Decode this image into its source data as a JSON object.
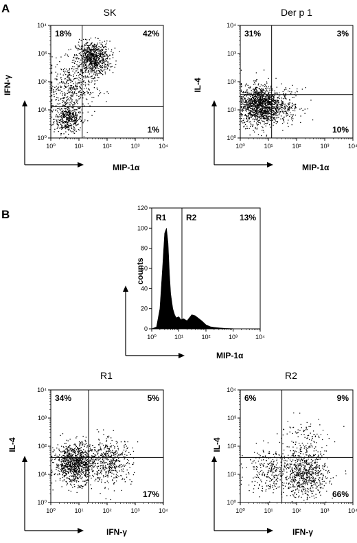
{
  "panel_labels": {
    "a": "A",
    "b": "B"
  },
  "colors": {
    "ink": "#000000",
    "background": "#ffffff"
  },
  "chart_data": [
    {
      "id": "sk",
      "type": "scatter",
      "title": "SK",
      "xlabel": "MIP-1α",
      "ylabel": "IFN-γ",
      "scale": "log",
      "xlim": [
        1,
        10000
      ],
      "ylim": [
        1,
        10000
      ],
      "xticks": [
        "10⁰",
        "10¹",
        "10²",
        "10³",
        "10⁴"
      ],
      "yticks": [
        "10⁰",
        "10¹",
        "10²",
        "10³",
        "10⁴"
      ],
      "gate": {
        "x": 13,
        "y": 13
      },
      "quadrants": {
        "ul": "18%",
        "ur": "42%",
        "lr": "1%"
      },
      "clusters": [
        {
          "x": 4,
          "y": 5,
          "spread": 0.25,
          "n": 420
        },
        {
          "x": 30,
          "y": 700,
          "spread": 0.3,
          "n": 800
        },
        {
          "x": 5,
          "y": 60,
          "spread": 0.45,
          "n": 420
        }
      ]
    },
    {
      "id": "derp1",
      "type": "scatter",
      "title": "Der p 1",
      "xlabel": "MIP-1α",
      "ylabel": "IL-4",
      "scale": "log",
      "xlim": [
        1,
        10000
      ],
      "ylim": [
        1,
        10000
      ],
      "xticks": [
        "10⁰",
        "10¹",
        "10²",
        "10³",
        "10⁴"
      ],
      "yticks": [
        "10⁰",
        "10¹",
        "10²",
        "10³",
        "10⁴"
      ],
      "gate": {
        "x": 13,
        "y": 35
      },
      "quadrants": {
        "ul": "31%",
        "ur": "3%",
        "lr": "10%"
      },
      "clusters": [
        {
          "x": 5,
          "y": 15,
          "spread": 0.35,
          "n": 1300
        },
        {
          "x": 40,
          "y": 15,
          "spread": 0.3,
          "n": 180
        }
      ]
    },
    {
      "id": "hist",
      "type": "area",
      "title": "",
      "xlabel": "MIP-1α",
      "ylabel": "counts",
      "xscale": "log",
      "xlim": [
        1,
        10000
      ],
      "ylim": [
        0,
        120
      ],
      "xticks": [
        "10⁰",
        "10¹",
        "10²",
        "10³",
        "10⁴"
      ],
      "yticks": [
        "0",
        "20",
        "40",
        "60",
        "80",
        "100",
        "120"
      ],
      "gate": {
        "x": 13
      },
      "regions": [
        "R1",
        "R2"
      ],
      "annotation": "13%",
      "x": [
        1,
        1.5,
        2,
        2.5,
        3,
        3.5,
        4,
        4.5,
        5,
        6,
        7,
        8,
        10,
        12,
        15,
        20,
        30,
        40,
        50,
        70,
        100,
        150,
        200,
        300,
        500,
        1000,
        10000
      ],
      "values": [
        0,
        2,
        20,
        60,
        95,
        100,
        85,
        55,
        35,
        20,
        14,
        11,
        12,
        9,
        10,
        8,
        14,
        13,
        11,
        8,
        4,
        2,
        1.5,
        1,
        0.5,
        0.2,
        0
      ]
    },
    {
      "id": "r1",
      "type": "scatter",
      "title": "R1",
      "xlabel": "IFN-γ",
      "ylabel": "IL-4",
      "scale": "log",
      "xlim": [
        1,
        10000
      ],
      "ylim": [
        1,
        10000
      ],
      "xticks": [
        "10⁰",
        "10¹",
        "10²",
        "10³",
        "10⁴"
      ],
      "yticks": [
        "10⁰",
        "10¹",
        "10²",
        "10³",
        "10⁴"
      ],
      "gate": {
        "x": 22,
        "y": 40
      },
      "quadrants": {
        "ul": "34%",
        "ur": "5%",
        "lr": "17%"
      },
      "clusters": [
        {
          "x": 7,
          "y": 25,
          "spread": 0.35,
          "n": 1000
        },
        {
          "x": 120,
          "y": 30,
          "spread": 0.4,
          "n": 450
        }
      ]
    },
    {
      "id": "r2",
      "type": "scatter",
      "title": "R2",
      "xlabel": "IFN-γ",
      "ylabel": "IL-4",
      "scale": "log",
      "xlim": [
        1,
        10000
      ],
      "ylim": [
        1,
        10000
      ],
      "xticks": [
        "10⁰",
        "10¹",
        "10²",
        "10³",
        "10⁴"
      ],
      "yticks": [
        "10⁰",
        "10¹",
        "10²",
        "10³",
        "10⁴"
      ],
      "gate": {
        "x": 30,
        "y": 40
      },
      "quadrants": {
        "ul": "6%",
        "ur": "9%",
        "lr": "66%"
      },
      "clusters": [
        {
          "x": 200,
          "y": 10,
          "spread": 0.4,
          "n": 650
        },
        {
          "x": 10,
          "y": 15,
          "spread": 0.4,
          "n": 250
        },
        {
          "x": 150,
          "y": 150,
          "spread": 0.45,
          "n": 120
        }
      ]
    }
  ]
}
